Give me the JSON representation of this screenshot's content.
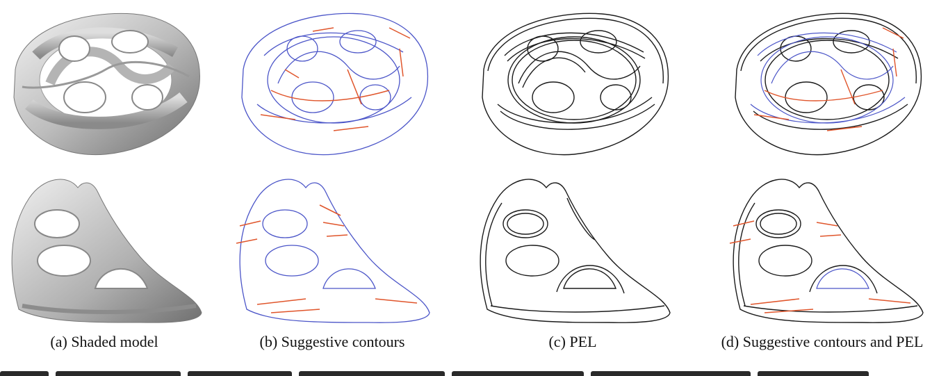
{
  "figure": {
    "captions": [
      "(a) Shaded model",
      "(b) Suggestive contours",
      "(c) PEL",
      "(d) Suggestive contours and PEL"
    ]
  },
  "colors": {
    "contour_blue": "#4b55c8",
    "suggestive_orange": "#e0552b",
    "pel_black": "#1a1a1a",
    "shade_light": "#e8e8e8",
    "shade_dark": "#7a7a7a"
  }
}
